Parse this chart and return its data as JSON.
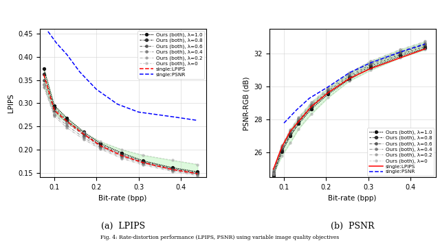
{
  "subplot_a_title": "(a)  LPIPS",
  "subplot_b_title": "(b)  PSNR",
  "xlabel": "Bit-rate (bpp)",
  "ylabel_a": "LPIPS",
  "ylabel_b": "PSNR-RGB (dB)",
  "lpips": {
    "xlim": [
      0.065,
      0.46
    ],
    "ylim": [
      0.14,
      0.46
    ],
    "xticks": [
      0.1,
      0.2,
      0.3,
      0.4
    ],
    "yticks": [
      0.15,
      0.2,
      0.25,
      0.3,
      0.35,
      0.4,
      0.45
    ],
    "lambda_curves": {
      "1.0": {
        "x": [
          0.075,
          0.1,
          0.13,
          0.17,
          0.21,
          0.26,
          0.31,
          0.38,
          0.44
        ],
        "y": [
          0.375,
          0.295,
          0.268,
          0.238,
          0.213,
          0.193,
          0.176,
          0.161,
          0.152
        ],
        "color": "#111111",
        "alpha": 1.0
      },
      "0.8": {
        "x": [
          0.075,
          0.1,
          0.13,
          0.17,
          0.21,
          0.26,
          0.31,
          0.38,
          0.44
        ],
        "y": [
          0.363,
          0.29,
          0.263,
          0.235,
          0.21,
          0.19,
          0.174,
          0.159,
          0.15
        ],
        "color": "#222222",
        "alpha": 0.88
      },
      "0.6": {
        "x": [
          0.075,
          0.1,
          0.13,
          0.17,
          0.21,
          0.26,
          0.31,
          0.38,
          0.44
        ],
        "y": [
          0.35,
          0.283,
          0.258,
          0.231,
          0.207,
          0.187,
          0.172,
          0.157,
          0.148
        ],
        "color": "#444444",
        "alpha": 0.76
      },
      "0.4": {
        "x": [
          0.075,
          0.1,
          0.13,
          0.17,
          0.21,
          0.26,
          0.31,
          0.38,
          0.44
        ],
        "y": [
          0.34,
          0.276,
          0.252,
          0.226,
          0.204,
          0.184,
          0.17,
          0.155,
          0.146
        ],
        "color": "#666666",
        "alpha": 0.64
      },
      "0.2": {
        "x": [
          0.075,
          0.1,
          0.13,
          0.17,
          0.21,
          0.26,
          0.31,
          0.38,
          0.44
        ],
        "y": [
          0.335,
          0.272,
          0.247,
          0.222,
          0.201,
          0.181,
          0.167,
          0.153,
          0.144
        ],
        "color": "#888888",
        "alpha": 0.55
      },
      "0.0": {
        "x": [
          0.075,
          0.1,
          0.13,
          0.17,
          0.21,
          0.26,
          0.31,
          0.38,
          0.44
        ],
        "y": [
          0.34,
          0.278,
          0.258,
          0.237,
          0.217,
          0.2,
          0.188,
          0.177,
          0.168
        ],
        "color": "#aaaaaa",
        "alpha": 0.5
      }
    },
    "single_lpips": {
      "x": [
        0.075,
        0.1,
        0.13,
        0.17,
        0.21,
        0.26,
        0.31,
        0.38,
        0.44
      ],
      "y": [
        0.362,
        0.285,
        0.261,
        0.233,
        0.208,
        0.187,
        0.172,
        0.157,
        0.148
      ]
    },
    "single_psnr": {
      "x": [
        0.085,
        0.105,
        0.13,
        0.16,
        0.2,
        0.25,
        0.3,
        0.38,
        0.44
      ],
      "y": [
        0.455,
        0.43,
        0.405,
        0.368,
        0.33,
        0.298,
        0.281,
        0.271,
        0.263
      ]
    },
    "fill_x": [
      0.075,
      0.1,
      0.13,
      0.17,
      0.21,
      0.26,
      0.31,
      0.38,
      0.44
    ],
    "fill_top": [
      0.34,
      0.278,
      0.258,
      0.237,
      0.217,
      0.2,
      0.188,
      0.177,
      0.168
    ],
    "fill_bot": [
      0.375,
      0.295,
      0.268,
      0.238,
      0.213,
      0.193,
      0.176,
      0.161,
      0.152
    ]
  },
  "psnr": {
    "xlim": [
      0.065,
      0.46
    ],
    "ylim": [
      24.5,
      33.5
    ],
    "xticks": [
      0.1,
      0.2,
      0.3,
      0.4
    ],
    "yticks": [
      26,
      28,
      30,
      32
    ],
    "lambda_curves": {
      "1.0": {
        "x": [
          0.075,
          0.095,
          0.115,
          0.135,
          0.165,
          0.205,
          0.255,
          0.305,
          0.375,
          0.435
        ],
        "y": [
          24.6,
          26.05,
          27.0,
          27.75,
          28.65,
          29.55,
          30.45,
          31.15,
          31.85,
          32.35
        ],
        "color": "#111111",
        "alpha": 1.0
      },
      "0.8": {
        "x": [
          0.075,
          0.095,
          0.115,
          0.135,
          0.165,
          0.205,
          0.255,
          0.305,
          0.375,
          0.435
        ],
        "y": [
          24.7,
          26.15,
          27.1,
          27.85,
          28.75,
          29.65,
          30.55,
          31.25,
          31.95,
          32.45
        ],
        "color": "#222222",
        "alpha": 0.88
      },
      "0.6": {
        "x": [
          0.075,
          0.095,
          0.115,
          0.135,
          0.165,
          0.205,
          0.255,
          0.305,
          0.375,
          0.435
        ],
        "y": [
          24.8,
          26.25,
          27.2,
          27.95,
          28.85,
          29.75,
          30.65,
          31.35,
          32.05,
          32.55
        ],
        "color": "#444444",
        "alpha": 0.76
      },
      "0.4": {
        "x": [
          0.075,
          0.095,
          0.115,
          0.135,
          0.165,
          0.205,
          0.255,
          0.305,
          0.375,
          0.435
        ],
        "y": [
          24.9,
          26.35,
          27.3,
          28.05,
          28.95,
          29.85,
          30.75,
          31.45,
          32.15,
          32.65
        ],
        "color": "#666666",
        "alpha": 0.64
      },
      "0.2": {
        "x": [
          0.075,
          0.095,
          0.115,
          0.135,
          0.165,
          0.205,
          0.255,
          0.305,
          0.375,
          0.435
        ],
        "y": [
          25.0,
          26.45,
          27.4,
          28.15,
          29.05,
          29.95,
          30.85,
          31.55,
          32.25,
          32.75
        ],
        "color": "#888888",
        "alpha": 0.55
      },
      "0.0": {
        "x": [
          0.075,
          0.095,
          0.115,
          0.135,
          0.165,
          0.205,
          0.255,
          0.305,
          0.375,
          0.435
        ],
        "y": [
          24.7,
          25.8,
          26.6,
          27.45,
          28.35,
          29.35,
          30.35,
          31.0,
          31.75,
          32.25
        ],
        "color": "#aaaaaa",
        "alpha": 0.5
      }
    },
    "single_lpips": {
      "x": [
        0.075,
        0.095,
        0.115,
        0.135,
        0.165,
        0.205,
        0.255,
        0.305,
        0.375,
        0.435
      ],
      "y": [
        25.0,
        26.35,
        27.3,
        27.9,
        28.8,
        29.65,
        30.5,
        31.1,
        31.75,
        32.3
      ]
    },
    "single_psnr": {
      "x": [
        0.1,
        0.13,
        0.16,
        0.205,
        0.255,
        0.305,
        0.375,
        0.435
      ],
      "y": [
        27.8,
        28.6,
        29.3,
        30.0,
        30.85,
        31.45,
        32.1,
        32.6
      ]
    },
    "fill_x": [
      0.075,
      0.095,
      0.115,
      0.135,
      0.165,
      0.205,
      0.255,
      0.305,
      0.375,
      0.435
    ],
    "fill_top": [
      25.0,
      26.45,
      27.4,
      28.15,
      29.05,
      29.95,
      30.85,
      31.55,
      32.25,
      32.75
    ],
    "fill_bot": [
      24.7,
      25.8,
      26.6,
      27.45,
      28.35,
      29.35,
      30.35,
      31.0,
      31.75,
      32.25
    ]
  },
  "legend_labels": [
    "Ours (both), λ=1.0",
    "Ours (both), λ=0.8",
    "Ours (both), λ=0.6",
    "Ours (both), λ=0.4",
    "Ours (both), λ=0.2",
    "Ours (both), λ=0",
    "single:LPIPS",
    "single:PSNR"
  ],
  "lambda_keys": [
    "1.0",
    "0.8",
    "0.6",
    "0.4",
    "0.2",
    "0.0"
  ],
  "fill_color": "#90EE90",
  "fill_alpha": 0.3,
  "fig_caption": "Fig. 4: Rate-distortion performance (LPIPS, PSNR) using variable image quality objectives"
}
